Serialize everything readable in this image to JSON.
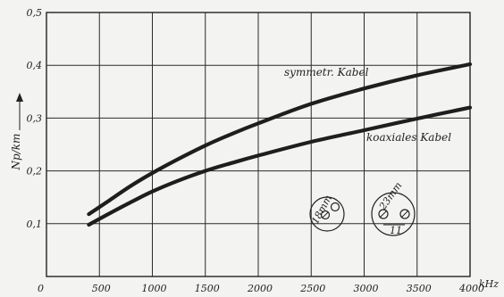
{
  "chart_data": {
    "type": "line",
    "xlabel": "kHz",
    "ylabel": "Np/km",
    "xlim": [
      0,
      4000
    ],
    "ylim": [
      0,
      0.5
    ],
    "grid": true,
    "x_ticks": [
      "0",
      "500",
      "1000",
      "1500",
      "2000",
      "2500",
      "3000",
      "3500",
      "4000"
    ],
    "y_ticks": [
      "0,1",
      "0,2",
      "0,3",
      "0,4",
      "0,5"
    ],
    "series": [
      {
        "name": "symmetr. Kabel",
        "x": [
          400,
          600,
          800,
          1000,
          1250,
          1500,
          1750,
          2000,
          2500,
          3000,
          3500,
          4000
        ],
        "values": [
          0.118,
          0.145,
          0.172,
          0.196,
          0.223,
          0.248,
          0.27,
          0.29,
          0.327,
          0.356,
          0.381,
          0.402
        ]
      },
      {
        "name": "koaxiales Kabel",
        "x": [
          400,
          600,
          800,
          1000,
          1250,
          1500,
          1750,
          2000,
          2500,
          3000,
          3500,
          4000
        ],
        "values": [
          0.098,
          0.12,
          0.141,
          0.161,
          0.182,
          0.2,
          0.215,
          0.229,
          0.255,
          0.277,
          0.299,
          0.32
        ]
      }
    ],
    "annotations": {
      "sym_diameter": "18mm",
      "coax_diameter": "23mm",
      "coax_spacing": "11"
    },
    "colors": {
      "background": "#f3f3f1",
      "ink": "#1e1e1e"
    }
  }
}
